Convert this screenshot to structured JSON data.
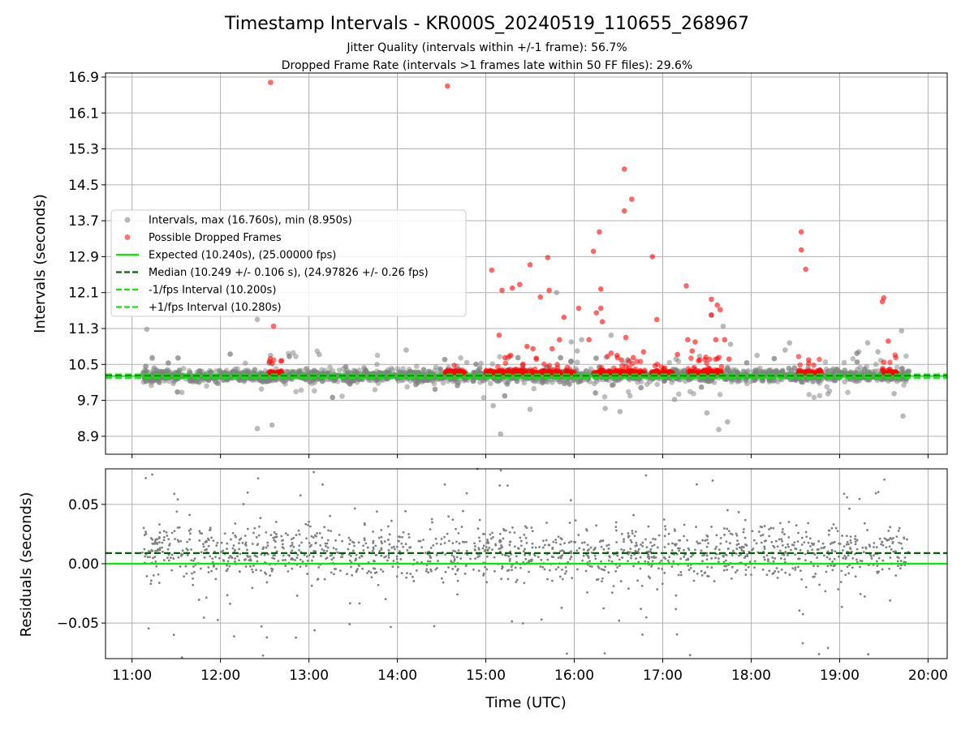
{
  "chart_data": [
    {
      "type": "scatter",
      "title": "Timestamp Intervals - KR000S_20240519_110655_268967",
      "subtitle_1": "Jitter Quality (intervals within +/-1 frame): 56.7%",
      "subtitle_2": "Dropped Frame Rate (intervals >1 frames late within 50 FF files): 29.6%",
      "ylabel": "Intervals (seconds)",
      "xlim": [
        "10:42",
        "20:13"
      ],
      "ylim": [
        8.5,
        16.99
      ],
      "y_ticks": [
        "8.9",
        "9.7",
        "10.5",
        "11.3",
        "12.1",
        "12.9",
        "13.7",
        "14.5",
        "15.3",
        "16.1",
        "16.9"
      ],
      "y_tick_values": [
        8.9,
        9.7,
        10.5,
        11.3,
        12.1,
        12.9,
        13.7,
        14.5,
        15.3,
        16.1,
        16.9
      ],
      "grid": true,
      "legend_position": "center-left",
      "legend": [
        {
          "label": "Intervals, max (16.760s), min (8.950s)",
          "style": "dot",
          "color": "#808080"
        },
        {
          "label": "Possible Dropped Frames",
          "style": "dot",
          "color": "#ff0000"
        },
        {
          "label": "Expected (10.240s), (25.00000 fps)",
          "style": "solid",
          "color": "#00ee00"
        },
        {
          "label": "Median (10.249 +/- 0.106 s), (24.97826 +/- 0.26 fps)",
          "style": "dashed",
          "color": "#006400"
        },
        {
          "label": "-1/fps Interval (10.200s)",
          "style": "dashed",
          "color": "#00ee00"
        },
        {
          "label": "+1/fps Interval (10.280s)",
          "style": "dashed",
          "color": "#00ee00"
        }
      ],
      "reference_lines": [
        {
          "y": 10.24,
          "style": "solid",
          "color": "#00ee00"
        },
        {
          "y": 10.249,
          "style": "dashed",
          "color": "#006400"
        },
        {
          "y": 10.2,
          "style": "dashed",
          "color": "#00ee00"
        },
        {
          "y": 10.28,
          "style": "dashed",
          "color": "#00ee00"
        }
      ],
      "series": [
        {
          "name": "Intervals, max (16.760s), min (8.950s)",
          "color": "#808080",
          "points": [
            [
              "11:10",
              11.28
            ],
            [
              "12:25",
              11.5
            ],
            [
              "12:25",
              9.07
            ],
            [
              "12:34",
              10.7
            ],
            [
              "12:35",
              9.15
            ],
            [
              "13:07",
              10.72
            ],
            [
              "14:06",
              10.82
            ],
            [
              "15:05",
              9.58
            ],
            [
              "15:10",
              8.95
            ],
            [
              "15:30",
              9.5
            ],
            [
              "15:48",
              12.1
            ],
            [
              "15:58",
              11.0
            ],
            [
              "16:02",
              10.8
            ],
            [
              "16:05",
              11.05
            ],
            [
              "16:21",
              9.52
            ],
            [
              "16:25",
              11.15
            ],
            [
              "16:31",
              9.45
            ],
            [
              "17:08",
              9.72
            ],
            [
              "17:09",
              10.62
            ],
            [
              "17:25",
              10.68
            ],
            [
              "17:30",
              9.42
            ],
            [
              "17:33",
              11.6
            ],
            [
              "17:38",
              9.05
            ],
            [
              "17:41",
              11.35
            ],
            [
              "17:44",
              9.22
            ],
            [
              "17:46",
              10.95
            ],
            [
              "18:04",
              10.7
            ],
            [
              "18:23",
              10.82
            ],
            [
              "18:26",
              10.98
            ],
            [
              "19:13",
              10.78
            ],
            [
              "19:19",
              10.98
            ],
            [
              "19:26",
              10.78
            ],
            [
              "19:37",
              9.85
            ],
            [
              "19:42",
              11.25
            ],
            [
              "19:43",
              9.35
            ]
          ],
          "dense_band": {
            "y_center": 10.25,
            "y_spread": 0.25,
            "x_from": "11:07",
            "x_to": "19:47"
          }
        },
        {
          "name": "Possible Dropped Frames",
          "color": "#ff0000",
          "points": [
            [
              "12:34",
              16.78
            ],
            [
              "14:34",
              16.7
            ],
            [
              "16:34",
              14.85
            ],
            [
              "16:34",
              13.92
            ],
            [
              "16:39",
              14.18
            ],
            [
              "16:17",
              13.45
            ],
            [
              "18:34",
              13.45
            ],
            [
              "18:34",
              13.05
            ],
            [
              "18:37",
              12.62
            ],
            [
              "15:18",
              12.2
            ],
            [
              "15:23",
              12.28
            ],
            [
              "15:30",
              12.72
            ],
            [
              "15:37",
              12.0
            ],
            [
              "15:42",
              12.88
            ],
            [
              "15:43",
              12.15
            ],
            [
              "15:04",
              12.6
            ],
            [
              "15:11",
              12.15
            ],
            [
              "16:13",
              13.02
            ],
            [
              "16:18",
              12.18
            ],
            [
              "16:18",
              11.75
            ],
            [
              "16:15",
              11.65
            ],
            [
              "16:19",
              11.45
            ],
            [
              "16:35",
              11.1
            ],
            [
              "16:53",
              12.9
            ],
            [
              "16:56",
              11.5
            ],
            [
              "17:16",
              12.25
            ],
            [
              "17:33",
              11.95
            ],
            [
              "17:33",
              11.6
            ],
            [
              "17:37",
              11.82
            ],
            [
              "17:39",
              11.72
            ],
            [
              "17:17",
              11.05
            ],
            [
              "17:36",
              11.05
            ],
            [
              "17:42",
              11.05
            ],
            [
              "17:22",
              11.0
            ],
            [
              "15:53",
              11.55
            ],
            [
              "15:50",
              11.05
            ],
            [
              "16:03",
              11.75
            ],
            [
              "16:10",
              11.05
            ],
            [
              "12:36",
              11.35
            ],
            [
              "15:09",
              11.15
            ],
            [
              "19:30",
              11.98
            ],
            [
              "19:29",
              11.9
            ],
            [
              "19:33",
              11.02
            ],
            [
              "19:30",
              10.55
            ],
            [
              "18:39",
              10.6
            ],
            [
              "12:35",
              10.52
            ],
            [
              "15:17",
              10.7
            ],
            [
              "15:13",
              10.65
            ],
            [
              "15:28",
              10.9
            ],
            [
              "15:32",
              10.85
            ],
            [
              "15:45",
              10.85
            ],
            [
              "16:25",
              10.75
            ],
            [
              "16:29",
              10.7
            ],
            [
              "16:32",
              10.6
            ],
            [
              "16:40",
              10.65
            ],
            [
              "16:47",
              10.78
            ],
            [
              "17:10",
              10.72
            ],
            [
              "17:20",
              10.8
            ],
            [
              "17:25",
              10.6
            ],
            [
              "17:45",
              10.62
            ]
          ],
          "clusters": [
            {
              "x_from": "12:33",
              "x_to": "12:42"
            },
            {
              "x_from": "14:32",
              "x_to": "14:46"
            },
            {
              "x_from": "15:00",
              "x_to": "15:52"
            },
            {
              "x_from": "15:54",
              "x_to": "16:00"
            },
            {
              "x_from": "16:13",
              "x_to": "16:48"
            },
            {
              "x_from": "16:52",
              "x_to": "17:07"
            },
            {
              "x_from": "17:17",
              "x_to": "17:40"
            },
            {
              "x_from": "18:32",
              "x_to": "18:48"
            },
            {
              "x_from": "19:29",
              "x_to": "19:39"
            }
          ]
        }
      ]
    },
    {
      "type": "scatter",
      "xlabel": "Time (UTC)",
      "ylabel": "Residuals (seconds)",
      "xlim": [
        "10:42",
        "20:13"
      ],
      "ylim": [
        -0.08,
        0.08
      ],
      "x_ticks": [
        "11:00",
        "12:00",
        "13:00",
        "14:00",
        "15:00",
        "16:00",
        "17:00",
        "18:00",
        "19:00",
        "20:00"
      ],
      "y_ticks": [
        "−0.05",
        "0.00",
        "0.05"
      ],
      "y_tick_values": [
        -0.05,
        0.0,
        0.05
      ],
      "grid": true,
      "reference_lines": [
        {
          "y": 0.0,
          "style": "solid",
          "color": "#00ee00"
        },
        {
          "y": 0.009,
          "style": "dashed",
          "color": "#006400"
        }
      ],
      "series": [
        {
          "color": "#808080",
          "distribution": {
            "x_from": "11:07",
            "x_to": "19:47",
            "center": 0.01,
            "spread": 0.045,
            "clip": 0.08
          }
        }
      ]
    }
  ]
}
